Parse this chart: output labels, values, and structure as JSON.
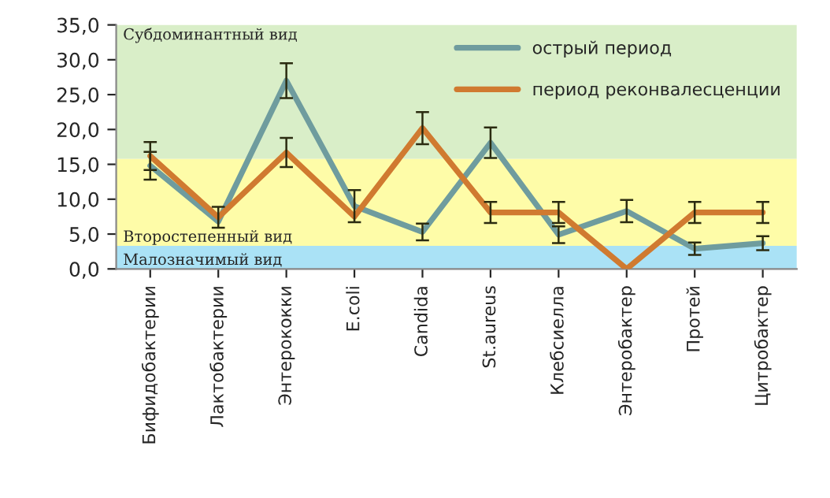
{
  "chart_data": {
    "type": "line",
    "categories": [
      "Бифидобактерии",
      "Лактобактерии",
      "Энтерококки",
      "E.coli",
      "Candida",
      "St.aureus",
      "Клебсиелла",
      "Энтеробактер",
      "Протей",
      "Цитробактер"
    ],
    "series": [
      {
        "name": "острый период",
        "color": "#6f9c9e",
        "values": [
          14.8,
          6.8,
          27.0,
          9.0,
          5.3,
          18.1,
          4.9,
          8.3,
          2.9,
          3.7
        ],
        "errors": [
          2.0,
          null,
          2.5,
          2.3,
          1.2,
          2.2,
          1.2,
          1.6,
          0.9,
          1.0
        ]
      },
      {
        "name": "период реконвалесценции",
        "color": "#d07a30",
        "values": [
          16.2,
          7.4,
          16.7,
          7.5,
          20.2,
          8.1,
          8.1,
          0.0,
          8.1,
          8.1
        ],
        "errors": [
          2.0,
          1.5,
          2.1,
          null,
          2.3,
          1.5,
          1.5,
          null,
          1.5,
          1.5
        ]
      }
    ],
    "ylim": [
      0,
      35
    ],
    "yticks": [
      {
        "value": 0,
        "label": "0,0"
      },
      {
        "value": 5,
        "label": "5,0"
      },
      {
        "value": 10,
        "label": "10,0"
      },
      {
        "value": 15,
        "label": "15,0"
      },
      {
        "value": 20,
        "label": "20,0"
      },
      {
        "value": 25,
        "label": "25,0"
      },
      {
        "value": 30,
        "label": "30,0"
      },
      {
        "value": 35,
        "label": "35,0"
      }
    ],
    "bands": [
      {
        "axis": "y",
        "from": 0,
        "to": 3.3,
        "label": "Малозначимый вид",
        "color": "#aae2f6"
      },
      {
        "axis": "y",
        "from": 3.3,
        "to": 15.8,
        "label": "Второстепенный вид",
        "color": "#fefca8"
      },
      {
        "axis": "y",
        "from": 15.8,
        "to": 35,
        "label": "Субдоминантный вид",
        "color": "#d9eec8"
      }
    ],
    "legend": "top right",
    "grid": false,
    "marker": "none",
    "line_style": "solid"
  }
}
